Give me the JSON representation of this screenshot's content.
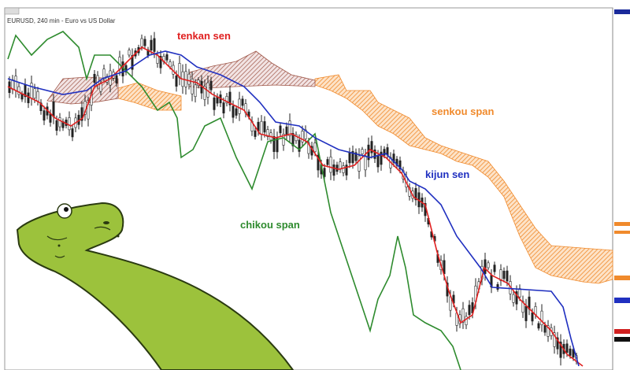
{
  "header": {
    "symbol_label": "EURUSD, 240 min - Euro vs US Dollar"
  },
  "annotations": {
    "tenkan": "tenkan sen",
    "senkou": "senkou span",
    "kijun": "kijun sen",
    "chikou": "chikou span"
  }
}
